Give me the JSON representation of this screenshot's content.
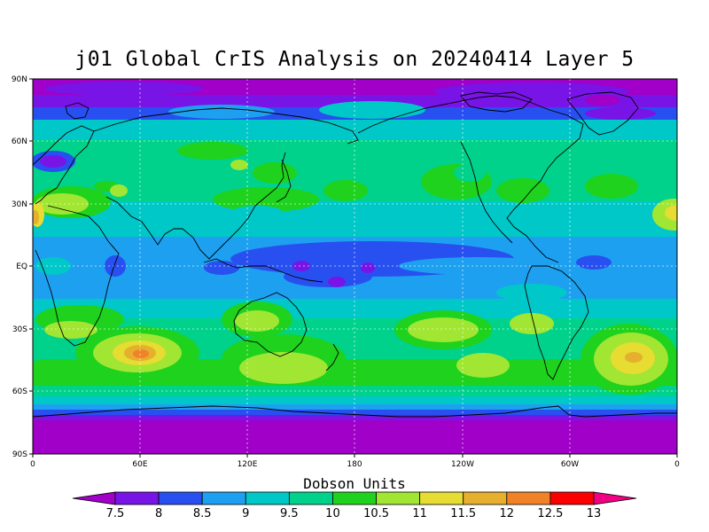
{
  "title": "j01 Global CrIS Analysis on 20240414 Layer 5",
  "map": {
    "lat_labels": [
      "90N",
      "60N",
      "30N",
      "EQ",
      "30S",
      "60S",
      "90S"
    ],
    "lon_labels": [
      "0",
      "60E",
      "120E",
      "180",
      "120W",
      "60W",
      "0"
    ]
  },
  "colorbar": {
    "title": "Dobson Units",
    "levels": [
      "7.5",
      "8",
      "8.5",
      "9",
      "9.5",
      "10",
      "10.5",
      "11",
      "11.5",
      "12",
      "12.5",
      "13"
    ],
    "colors": [
      "#a000c8",
      "#7814e6",
      "#2850f0",
      "#1ea0f0",
      "#00c8c8",
      "#00d28c",
      "#1ed21e",
      "#a0e632",
      "#e6dc32",
      "#e6af2d",
      "#f08228",
      "#fa0000",
      "#f00082"
    ]
  }
}
